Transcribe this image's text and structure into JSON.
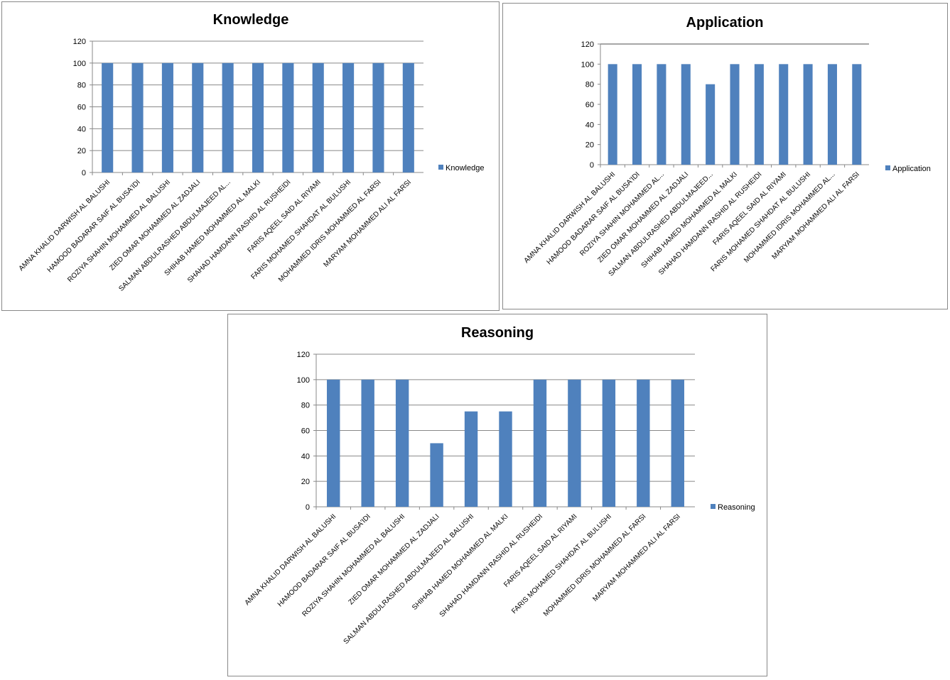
{
  "colors": {
    "bar": "#4F81BD",
    "grid": "#888888",
    "axis": "#888888",
    "border": "#888888"
  },
  "chart_data": [
    {
      "type": "bar",
      "title": "Knowledge",
      "legend": "Knowledge",
      "legend_position": "right",
      "grid": true,
      "ylim": [
        0,
        120
      ],
      "yticks": [
        0,
        20,
        40,
        60,
        80,
        100,
        120
      ],
      "categories": [
        "AMNA KHALID DARWISH AL BALUSHI",
        "HAMOOD BADARAR SAIF AL BUSA'IDI",
        "ROZIYA SHAHIN MOHAMMED AL BALUSHI",
        "ZIED OMAR MOHAMMED AL ZADJALI",
        "SALMAN ABDULRASHED ABDULMAJEED AL...",
        "SHIHAB HAMED MOHAMMED AL MALKI",
        "SHAHAD HAMDANN RASHID AL RUSHEIDI",
        "FARIS AQEEL SAID AL RIYAMI",
        "FARIS MOHAMED SHAHDAT AL BULUSHI",
        "MOHAMMED IDRIS MOHAMMED AL FARSI",
        "MARYAM MOHAMMED ALI AL FARSI"
      ],
      "values": [
        100,
        100,
        100,
        100,
        100,
        100,
        100,
        100,
        100,
        100,
        100
      ]
    },
    {
      "type": "bar",
      "title": "Application",
      "legend": "Application",
      "legend_position": "right",
      "grid": false,
      "ylim": [
        0,
        120
      ],
      "yticks": [
        0,
        20,
        40,
        60,
        80,
        100,
        120
      ],
      "categories": [
        "AMNA KHALID DARWISH AL BALUSHI",
        "HAMOOD BADARAR SAIF AL BUSA'IDI",
        "ROZIYA SHAHIN MOHAMMED AL...",
        "ZIED OMAR MOHAMMED AL ZADJALI",
        "SALMAN ABDULRASHED ABDULMAJEED...",
        "SHIHAB HAMED MOHAMMED AL MALKI",
        "SHAHAD HAMDANN RASHID AL RUSHEIDI",
        "FARIS AQEEL SAID AL RIYAMI",
        "FARIS MOHAMED SHAHDAT AL BULUSHI",
        "MOHAMMED IDRIS MOHAMMED AL...",
        "MARYAM MOHAMMED ALI AL FARSI"
      ],
      "values": [
        100,
        100,
        100,
        100,
        80,
        100,
        100,
        100,
        100,
        100,
        100
      ]
    },
    {
      "type": "bar",
      "title": "Reasoning",
      "legend": "Reasoning",
      "legend_position": "right",
      "grid": true,
      "ylim": [
        0,
        120
      ],
      "yticks": [
        0,
        20,
        40,
        60,
        80,
        100,
        120
      ],
      "categories": [
        "AMNA KHALID DARWISH AL BALUSHI",
        "HAMOOD BADARAR SAIF AL BUSA'IDI",
        "ROZIYA SHAHIN MOHAMMED AL BALUSHI",
        "ZIED OMAR MOHAMMED AL ZADJALI",
        "SALMAN ABDULRASHED ABDULMAJEED AL BALUSHI",
        "SHIHAB HAMED MOHAMMED AL MALKI",
        "SHAHAD HAMDANN RASHID AL RUSHEIDI",
        "FARIS AQEEL SAID AL RIYAMI",
        "FARIS MOHAMED SHAHDAT AL BULUSHI",
        "MOHAMMED IDRIS MOHAMMED AL FARSI",
        "MARYAM MOHAMMED ALI AL FARSI"
      ],
      "values": [
        100,
        100,
        100,
        50,
        75,
        75,
        100,
        100,
        100,
        100,
        100
      ]
    }
  ]
}
